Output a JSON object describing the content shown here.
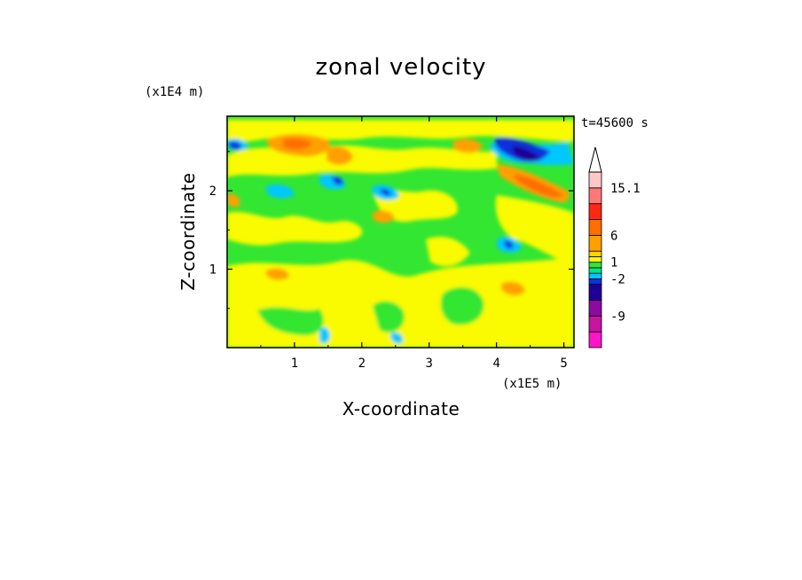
{
  "chart_data": {
    "type": "heatmap",
    "title": "zonal velocity",
    "xlabel": "X-coordinate",
    "ylabel": "Z-coordinate",
    "x_unit": "(x1E5 m)",
    "y_unit": "(x1E4 m)",
    "time_label": "t=45600 s",
    "xlim": [
      0,
      5.15
    ],
    "ylim": [
      0,
      2.95
    ],
    "x_ticks": [
      "1",
      "2",
      "3",
      "4",
      "5"
    ],
    "y_ticks": [
      "1",
      "2"
    ],
    "colorbar": {
      "levels": [
        -15.1,
        -12,
        -9,
        -6,
        -3,
        -2,
        -1,
        0,
        1,
        2,
        3,
        6,
        9,
        12,
        15.1
      ],
      "labels": [
        "15.1",
        "6",
        "1",
        "-2",
        "-9"
      ],
      "colors": [
        "#ff14c8",
        "#c814a0",
        "#8c0aa0",
        "#1e0096",
        "#0a32dc",
        "#00c8ff",
        "#00e68c",
        "#32e632",
        "#fafa00",
        "#ffd200",
        "#ffa000",
        "#ff6e00",
        "#ff2814",
        "#ff7878",
        "#ffc8c8"
      ],
      "extend_top": true
    }
  }
}
